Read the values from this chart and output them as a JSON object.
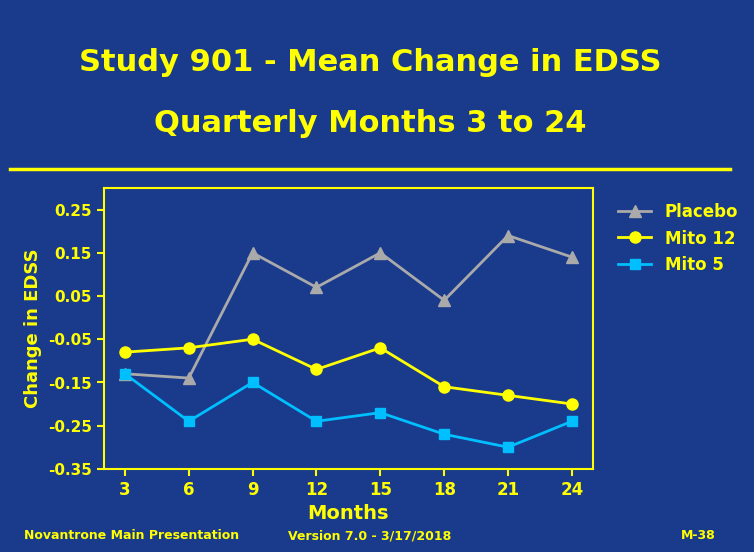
{
  "title_line1": "Study 901 - Mean Change in EDSS",
  "title_line2": "Quarterly Months 3 to 24",
  "title_color": "#FFFF00",
  "background_color": "#1a3a8c",
  "plot_bg_color": "#1a3a8c",
  "xlabel": "Months",
  "ylabel": "Change in EDSS",
  "xlabel_color": "#FFFF00",
  "ylabel_color": "#FFFF00",
  "tick_color": "#FFFF00",
  "months": [
    3,
    6,
    9,
    12,
    15,
    18,
    21,
    24
  ],
  "placebo": [
    -0.13,
    -0.14,
    0.15,
    0.07,
    0.15,
    0.04,
    0.19,
    0.14
  ],
  "mito12": [
    -0.08,
    -0.07,
    -0.05,
    -0.12,
    -0.07,
    -0.16,
    -0.18,
    -0.2
  ],
  "mito5": [
    -0.13,
    -0.24,
    -0.15,
    -0.24,
    -0.22,
    -0.27,
    -0.3,
    -0.24
  ],
  "placebo_color": "#aaaaaa",
  "mito12_color": "#FFFF00",
  "mito5_color": "#00BFFF",
  "ylim": [
    -0.35,
    0.3
  ],
  "yticks": [
    -0.35,
    -0.25,
    -0.15,
    -0.05,
    0.05,
    0.15,
    0.25
  ],
  "ytick_labels": [
    "-0.35",
    "-0.25",
    "-0.15",
    "-0.05",
    "0.05",
    "0.15",
    "0.25"
  ],
  "legend_labels": [
    "Placebo",
    "Mito 12",
    "Mito 5"
  ],
  "footer_left": "Novantrone Main Presentation",
  "footer_center": "Version 7.0 - 3/17/2018",
  "footer_right": "M-38",
  "footer_color": "#FFFF00",
  "separator_color": "#FFFF00",
  "axis_color": "#FFFF00"
}
